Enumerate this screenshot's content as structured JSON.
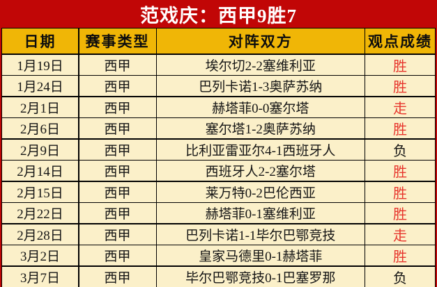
{
  "title": "范戏庆：西甲9胜7",
  "colors": {
    "band_red": "#c10606",
    "header_gold": "#f0b606",
    "row_cream": "#fbf0c9",
    "win_red": "#e7352c",
    "loss_black": "#141414",
    "title_text": "#ffffff",
    "gridline_black": "#000000"
  },
  "chart_data": {
    "type": "table",
    "title": "范戏庆：西甲9胜7",
    "columns": [
      "日期",
      "赛事类型",
      "对阵双方",
      "观点成绩"
    ],
    "rows": [
      {
        "date": "1月19日",
        "league": "西甲",
        "match": "埃尔切2-2塞维利亚",
        "result": "胜",
        "result_color": "#e7352c"
      },
      {
        "date": "1月24日",
        "league": "西甲",
        "match": "巴列卡诺1-3奥萨苏纳",
        "result": "胜",
        "result_color": "#e7352c"
      },
      {
        "date": "2月1日",
        "league": "西甲",
        "match": "赫塔菲0-0塞尔塔",
        "result": "走",
        "result_color": "#e7352c"
      },
      {
        "date": "2月6日",
        "league": "西甲",
        "match": "塞尔塔1-2奥萨苏纳",
        "result": "胜",
        "result_color": "#e7352c"
      },
      {
        "date": "2月9日",
        "league": "西甲",
        "match": "比利亚雷亚尔4-1西班牙人",
        "result": "负",
        "result_color": "#141414"
      },
      {
        "date": "2月14日",
        "league": "西甲",
        "match": "西班牙人2-2塞尔塔",
        "result": "胜",
        "result_color": "#e7352c"
      },
      {
        "date": "2月15日",
        "league": "西甲",
        "match": "莱万特0-2巴伦西亚",
        "result": "胜",
        "result_color": "#e7352c"
      },
      {
        "date": "2月22日",
        "league": "西甲",
        "match": "赫塔菲0-1塞维利亚",
        "result": "胜",
        "result_color": "#e7352c"
      },
      {
        "date": "2月28日",
        "league": "西甲",
        "match": "巴列卡诺1-1毕尔巴鄂竞技",
        "result": "走",
        "result_color": "#e7352c"
      },
      {
        "date": "3月2日",
        "league": "西甲",
        "match": "皇家马德里0-1赫塔菲",
        "result": "胜",
        "result_color": "#e7352c"
      },
      {
        "date": "3月7日",
        "league": "西甲",
        "match": "毕尔巴鄂竞技0-1巴塞罗那",
        "result": "负",
        "result_color": "#141414"
      }
    ]
  }
}
